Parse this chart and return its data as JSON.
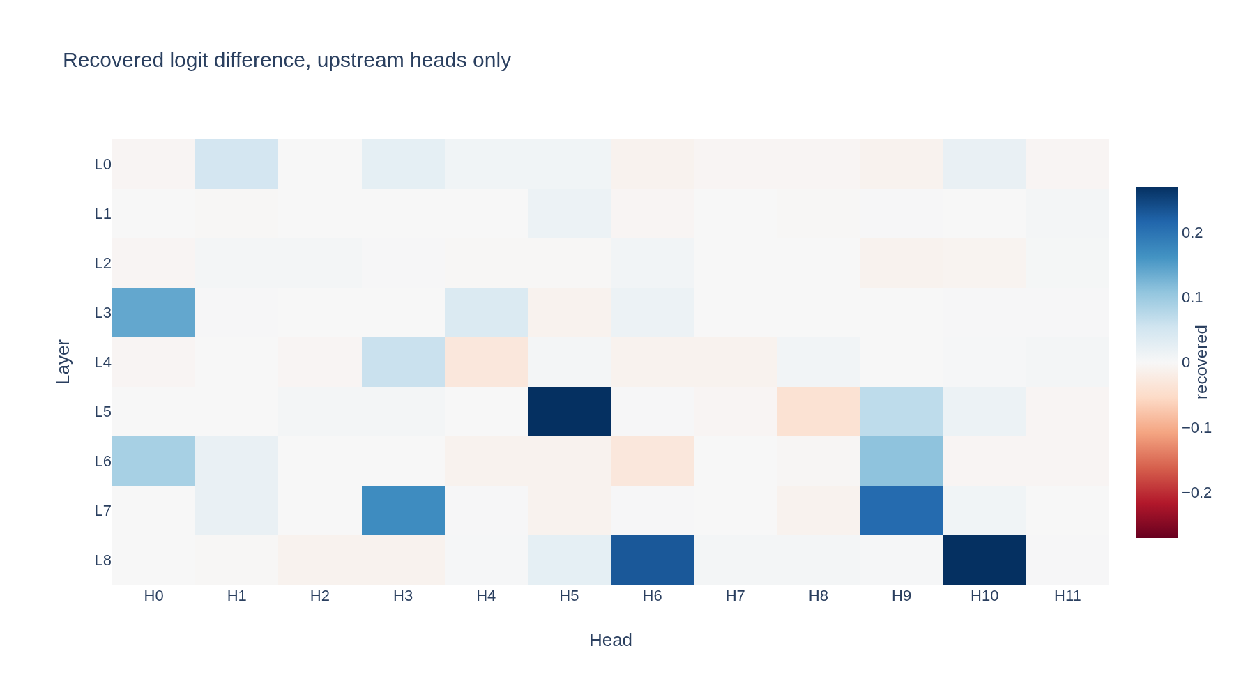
{
  "chart_data": {
    "type": "heatmap",
    "title": "Recovered logit difference, upstream heads only",
    "xlabel": "Head",
    "ylabel": "Layer",
    "clabel": "recovered",
    "categories": [
      "H0",
      "H1",
      "H2",
      "H3",
      "H4",
      "H5",
      "H6",
      "H7",
      "H8",
      "H9",
      "H10",
      "H11"
    ],
    "y_categories": [
      "L0",
      "L1",
      "L2",
      "L3",
      "L4",
      "L5",
      "L6",
      "L7",
      "L8"
    ],
    "cells": [
      [
        -0.005,
        0.05,
        0,
        0.025,
        0.01,
        0.01,
        -0.01,
        -0.005,
        -0.005,
        -0.01,
        0.02,
        -0.005
      ],
      [
        0,
        -0.002,
        0,
        0,
        0,
        0.015,
        -0.005,
        0,
        -0.002,
        0.002,
        0,
        0.005
      ],
      [
        -0.005,
        0.005,
        0.005,
        0.002,
        -0.002,
        -0.002,
        0.008,
        0,
        0,
        -0.01,
        -0.008,
        0.004
      ],
      [
        0.14,
        0.002,
        0,
        0,
        0.04,
        -0.01,
        0.015,
        0,
        0,
        0,
        0.002,
        0.002
      ],
      [
        -0.005,
        0,
        -0.005,
        0.06,
        -0.03,
        0.005,
        -0.01,
        -0.01,
        0.008,
        0,
        0.003,
        0.005
      ],
      [
        0,
        0,
        0.005,
        0.005,
        0,
        0.27,
        0.002,
        -0.005,
        -0.04,
        0.07,
        0.015,
        -0.005
      ],
      [
        0.09,
        0.02,
        0,
        0,
        -0.01,
        -0.01,
        -0.03,
        0,
        -0.003,
        0.11,
        -0.005,
        -0.005
      ],
      [
        0,
        0.02,
        0,
        0.17,
        0.002,
        -0.01,
        0.002,
        0,
        -0.01,
        0.21,
        0.01,
        0
      ],
      [
        0,
        -0.002,
        -0.01,
        -0.01,
        0.003,
        0.025,
        0.23,
        0.005,
        0.005,
        0.003,
        0.27,
        0.002
      ]
    ],
    "colors": [
      "#67001f",
      "#b2182b",
      "#d6604d",
      "#f4a582",
      "#fddbc7",
      "#f7f7f7",
      "#d1e5f0",
      "#92c5de",
      "#4393c3",
      "#2166ac",
      "#053061"
    ],
    "clim": [
      -0.27,
      0.27
    ],
    "cticks": [
      {
        "value": -0.2,
        "label": "−0.2"
      },
      {
        "value": -0.1,
        "label": "−0.1"
      },
      0,
      0.1,
      0.2
    ]
  }
}
